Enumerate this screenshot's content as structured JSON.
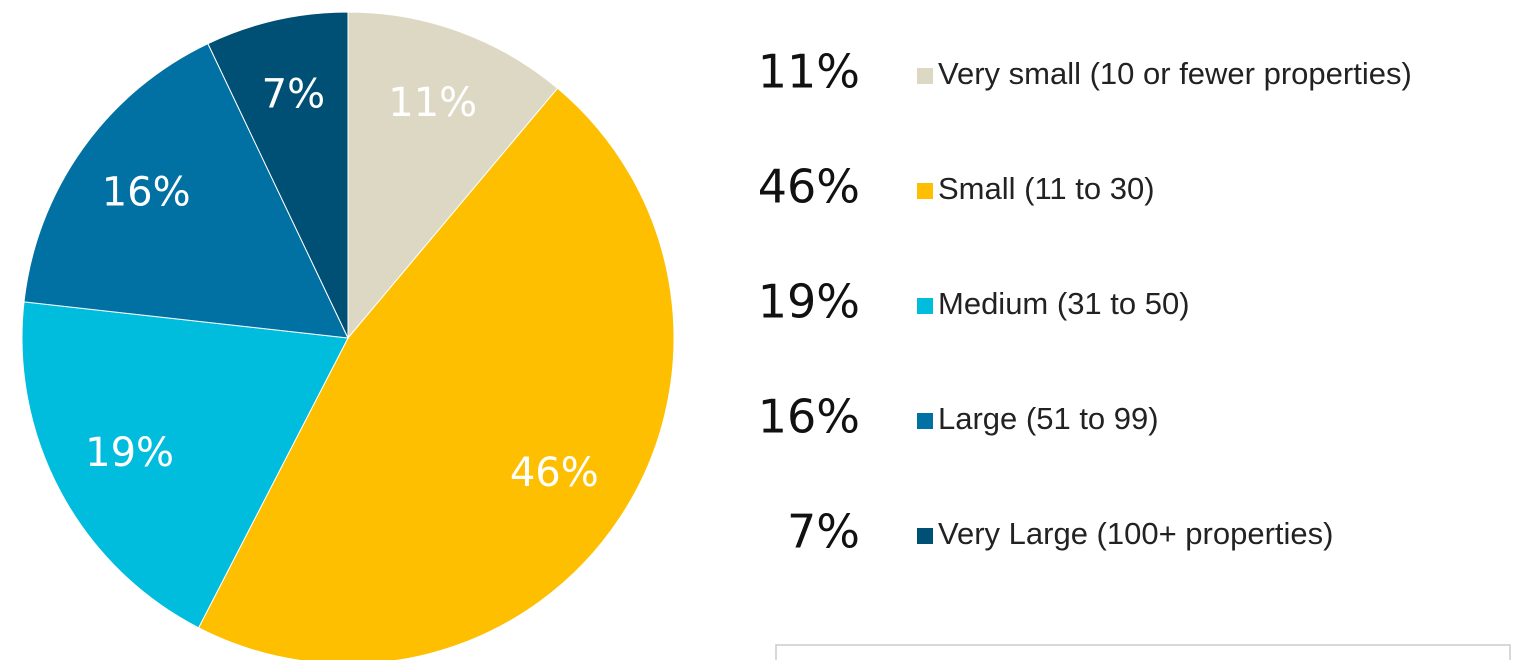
{
  "chart_data": {
    "type": "pie",
    "categories": [
      "Very small (10 or fewer properties)",
      "Small (11 to 30)",
      "Medium (31 to 50)",
      "Large (51 to 99)",
      "Very Large (100+ properties)"
    ],
    "values": [
      11,
      46,
      19,
      16,
      7
    ],
    "value_labels": [
      "11%",
      "46%",
      "19%",
      "16%",
      "7%"
    ],
    "colors": [
      "#ddd8c3",
      "#fdbf00",
      "#00bcdd",
      "#0071a2",
      "#004f74"
    ]
  }
}
